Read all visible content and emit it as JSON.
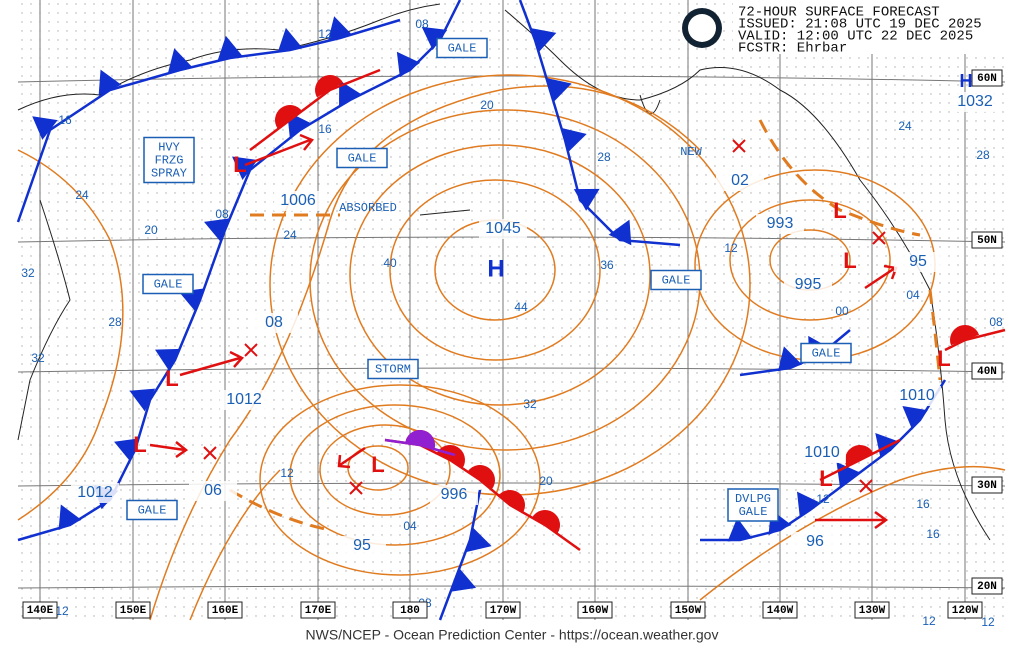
{
  "header": {
    "title": "72-HOUR SURFACE FORECAST",
    "issued": "ISSUED: 21:08 UTC 19 DEC 2025",
    "valid": "VALID:  12:00 UTC 22 DEC 2025",
    "forecaster": "FCSTR:  Ehrbar"
  },
  "footer": "NWS/NCEP - Ocean Prediction Center - https://ocean.weather.gov",
  "symbols": {
    "high": "H",
    "low": "L"
  },
  "boxed_labels": [
    [
      "GALE"
    ],
    [
      "GALE"
    ],
    [
      "GALE"
    ],
    [
      "GALE"
    ],
    [
      "GALE"
    ],
    [
      "GALE"
    ],
    [
      "STORM"
    ],
    [
      "HVY",
      "FRZG",
      "SPRAY"
    ],
    [
      "DVLPG",
      "GALE"
    ]
  ],
  "pressures": [
    "1045",
    "1006",
    "08",
    "1012",
    "1012",
    "06",
    "996",
    "95",
    "993",
    "995",
    "02",
    "95",
    "1010",
    "1010",
    "96",
    "1032"
  ],
  "isobar_labels": [
    "16",
    "24",
    "20",
    "32",
    "28",
    "32",
    "12",
    "08",
    "16",
    "08",
    "24",
    "40",
    "44",
    "20",
    "36",
    "32",
    "20",
    "12",
    "04",
    "08",
    "12",
    "28",
    "12",
    "24",
    "28",
    "04",
    "00",
    "08",
    "12",
    "16",
    "16",
    "12",
    "12"
  ],
  "notes": [
    "ABSORBED",
    "NEW"
  ],
  "longitudes": [
    "140E",
    "150E",
    "160E",
    "170E",
    "180",
    "170W",
    "160W",
    "150W",
    "140W",
    "130W",
    "120W"
  ],
  "latitudes": [
    "60N",
    "50N",
    "40N",
    "30N",
    "20N"
  ]
}
